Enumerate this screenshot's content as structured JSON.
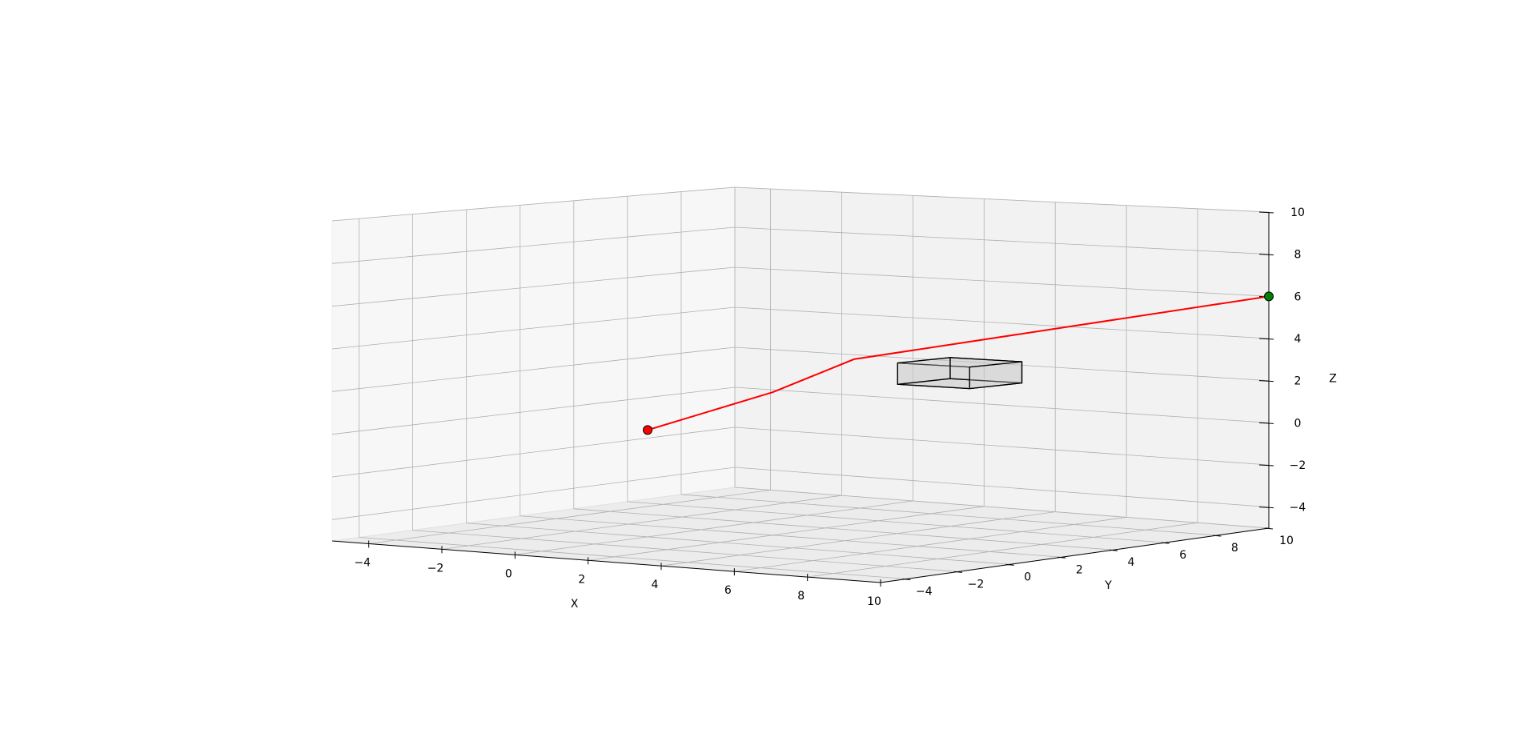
{
  "chart_data": {
    "type": "line3d",
    "title": "",
    "xlabel": "X",
    "ylabel": "Y",
    "zlabel": "Z",
    "xlim": [
      -5,
      10
    ],
    "ylim": [
      -5,
      10
    ],
    "zlim": [
      -5,
      10
    ],
    "xticks": [
      -4,
      -2,
      0,
      2,
      4,
      6,
      8,
      10
    ],
    "yticks": [
      -4,
      -2,
      0,
      2,
      4,
      6,
      8,
      10
    ],
    "zticks": [
      -4,
      -2,
      0,
      2,
      4,
      6,
      8,
      10
    ],
    "grid": true,
    "path": {
      "color": "#ff0000",
      "points": [
        {
          "x": 0,
          "y": 0,
          "z": 0
        },
        {
          "x": 2,
          "y": 2,
          "z": 1.7
        },
        {
          "x": 3.3,
          "y": 3.3,
          "z": 3.2
        },
        {
          "x": 10,
          "y": 10,
          "z": 6
        }
      ]
    },
    "start_marker": {
      "x": 0,
      "y": 0,
      "z": 0,
      "color": "#ff0000"
    },
    "goal_marker": {
      "x": 10,
      "y": 10,
      "z": 6,
      "color": "#008000"
    },
    "obstacle": {
      "x": [
        4,
        6
      ],
      "y": [
        4,
        6
      ],
      "z": [
        2,
        3
      ],
      "face_color": "#c8c8c8",
      "edge_color": "#000000"
    }
  }
}
